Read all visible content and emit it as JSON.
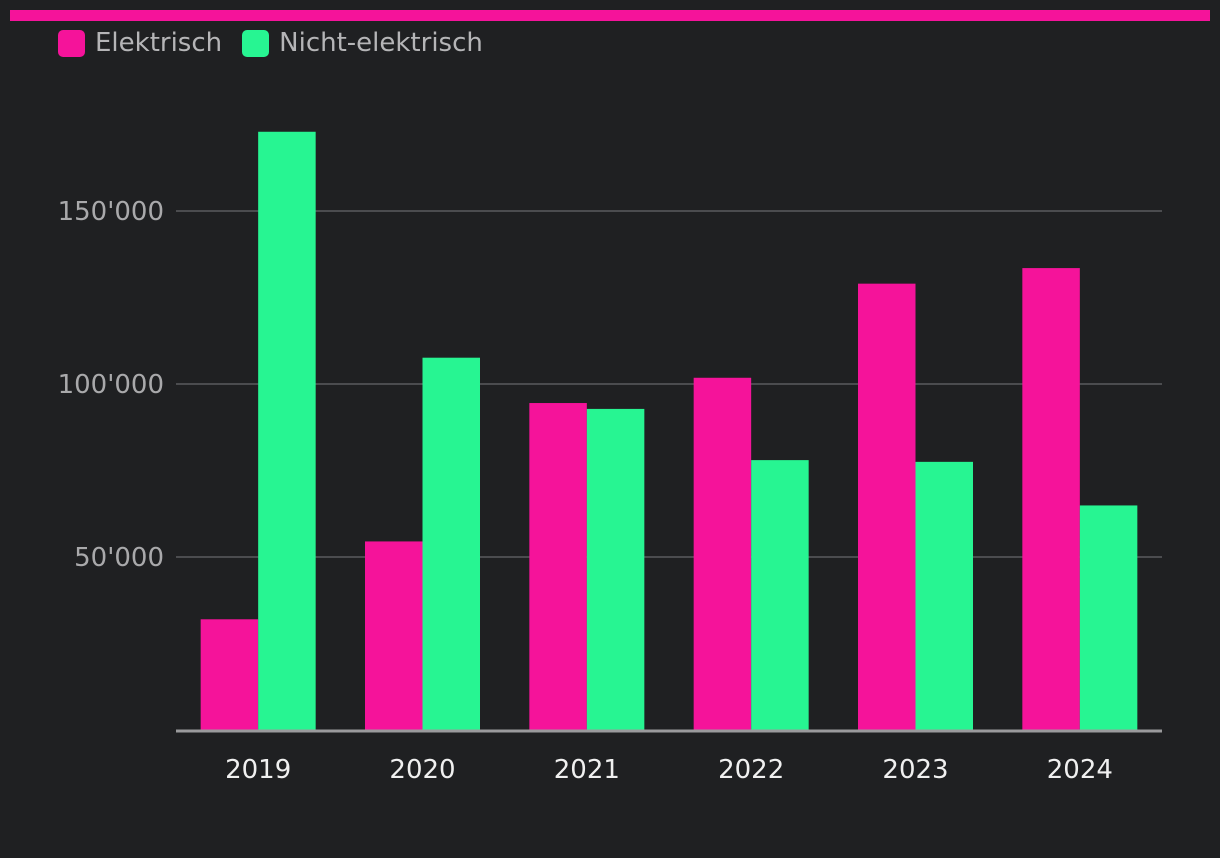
{
  "colors": {
    "background": "#1f2022",
    "accent_bar": "#f5139a",
    "electric": "#f5139a",
    "non_electric": "#27f592",
    "grid": "#5a5b5e",
    "axis": "#9a9a9c"
  },
  "legend": {
    "items": [
      {
        "label": "Elektrisch",
        "color": "#f5139a"
      },
      {
        "label": "Nicht-elektrisch",
        "color": "#27f592"
      }
    ],
    "placement": "top-left"
  },
  "chart_data": {
    "type": "bar",
    "categories": [
      "2019",
      "2020",
      "2021",
      "2022",
      "2023",
      "2024"
    ],
    "series": [
      {
        "name": "Elektrisch",
        "values": [
          32000,
          54500,
          94500,
          101800,
          129000,
          133500
        ]
      },
      {
        "name": "Nicht-elektrisch",
        "values": [
          172900,
          107600,
          92800,
          78000,
          77500,
          64900
        ]
      }
    ],
    "y_ticks": [
      {
        "value": 50000,
        "label": "50'000"
      },
      {
        "value": 100000,
        "label": "100'000"
      },
      {
        "value": 150000,
        "label": "150'000"
      }
    ],
    "ylim": [
      0,
      172900
    ],
    "grid": true
  }
}
